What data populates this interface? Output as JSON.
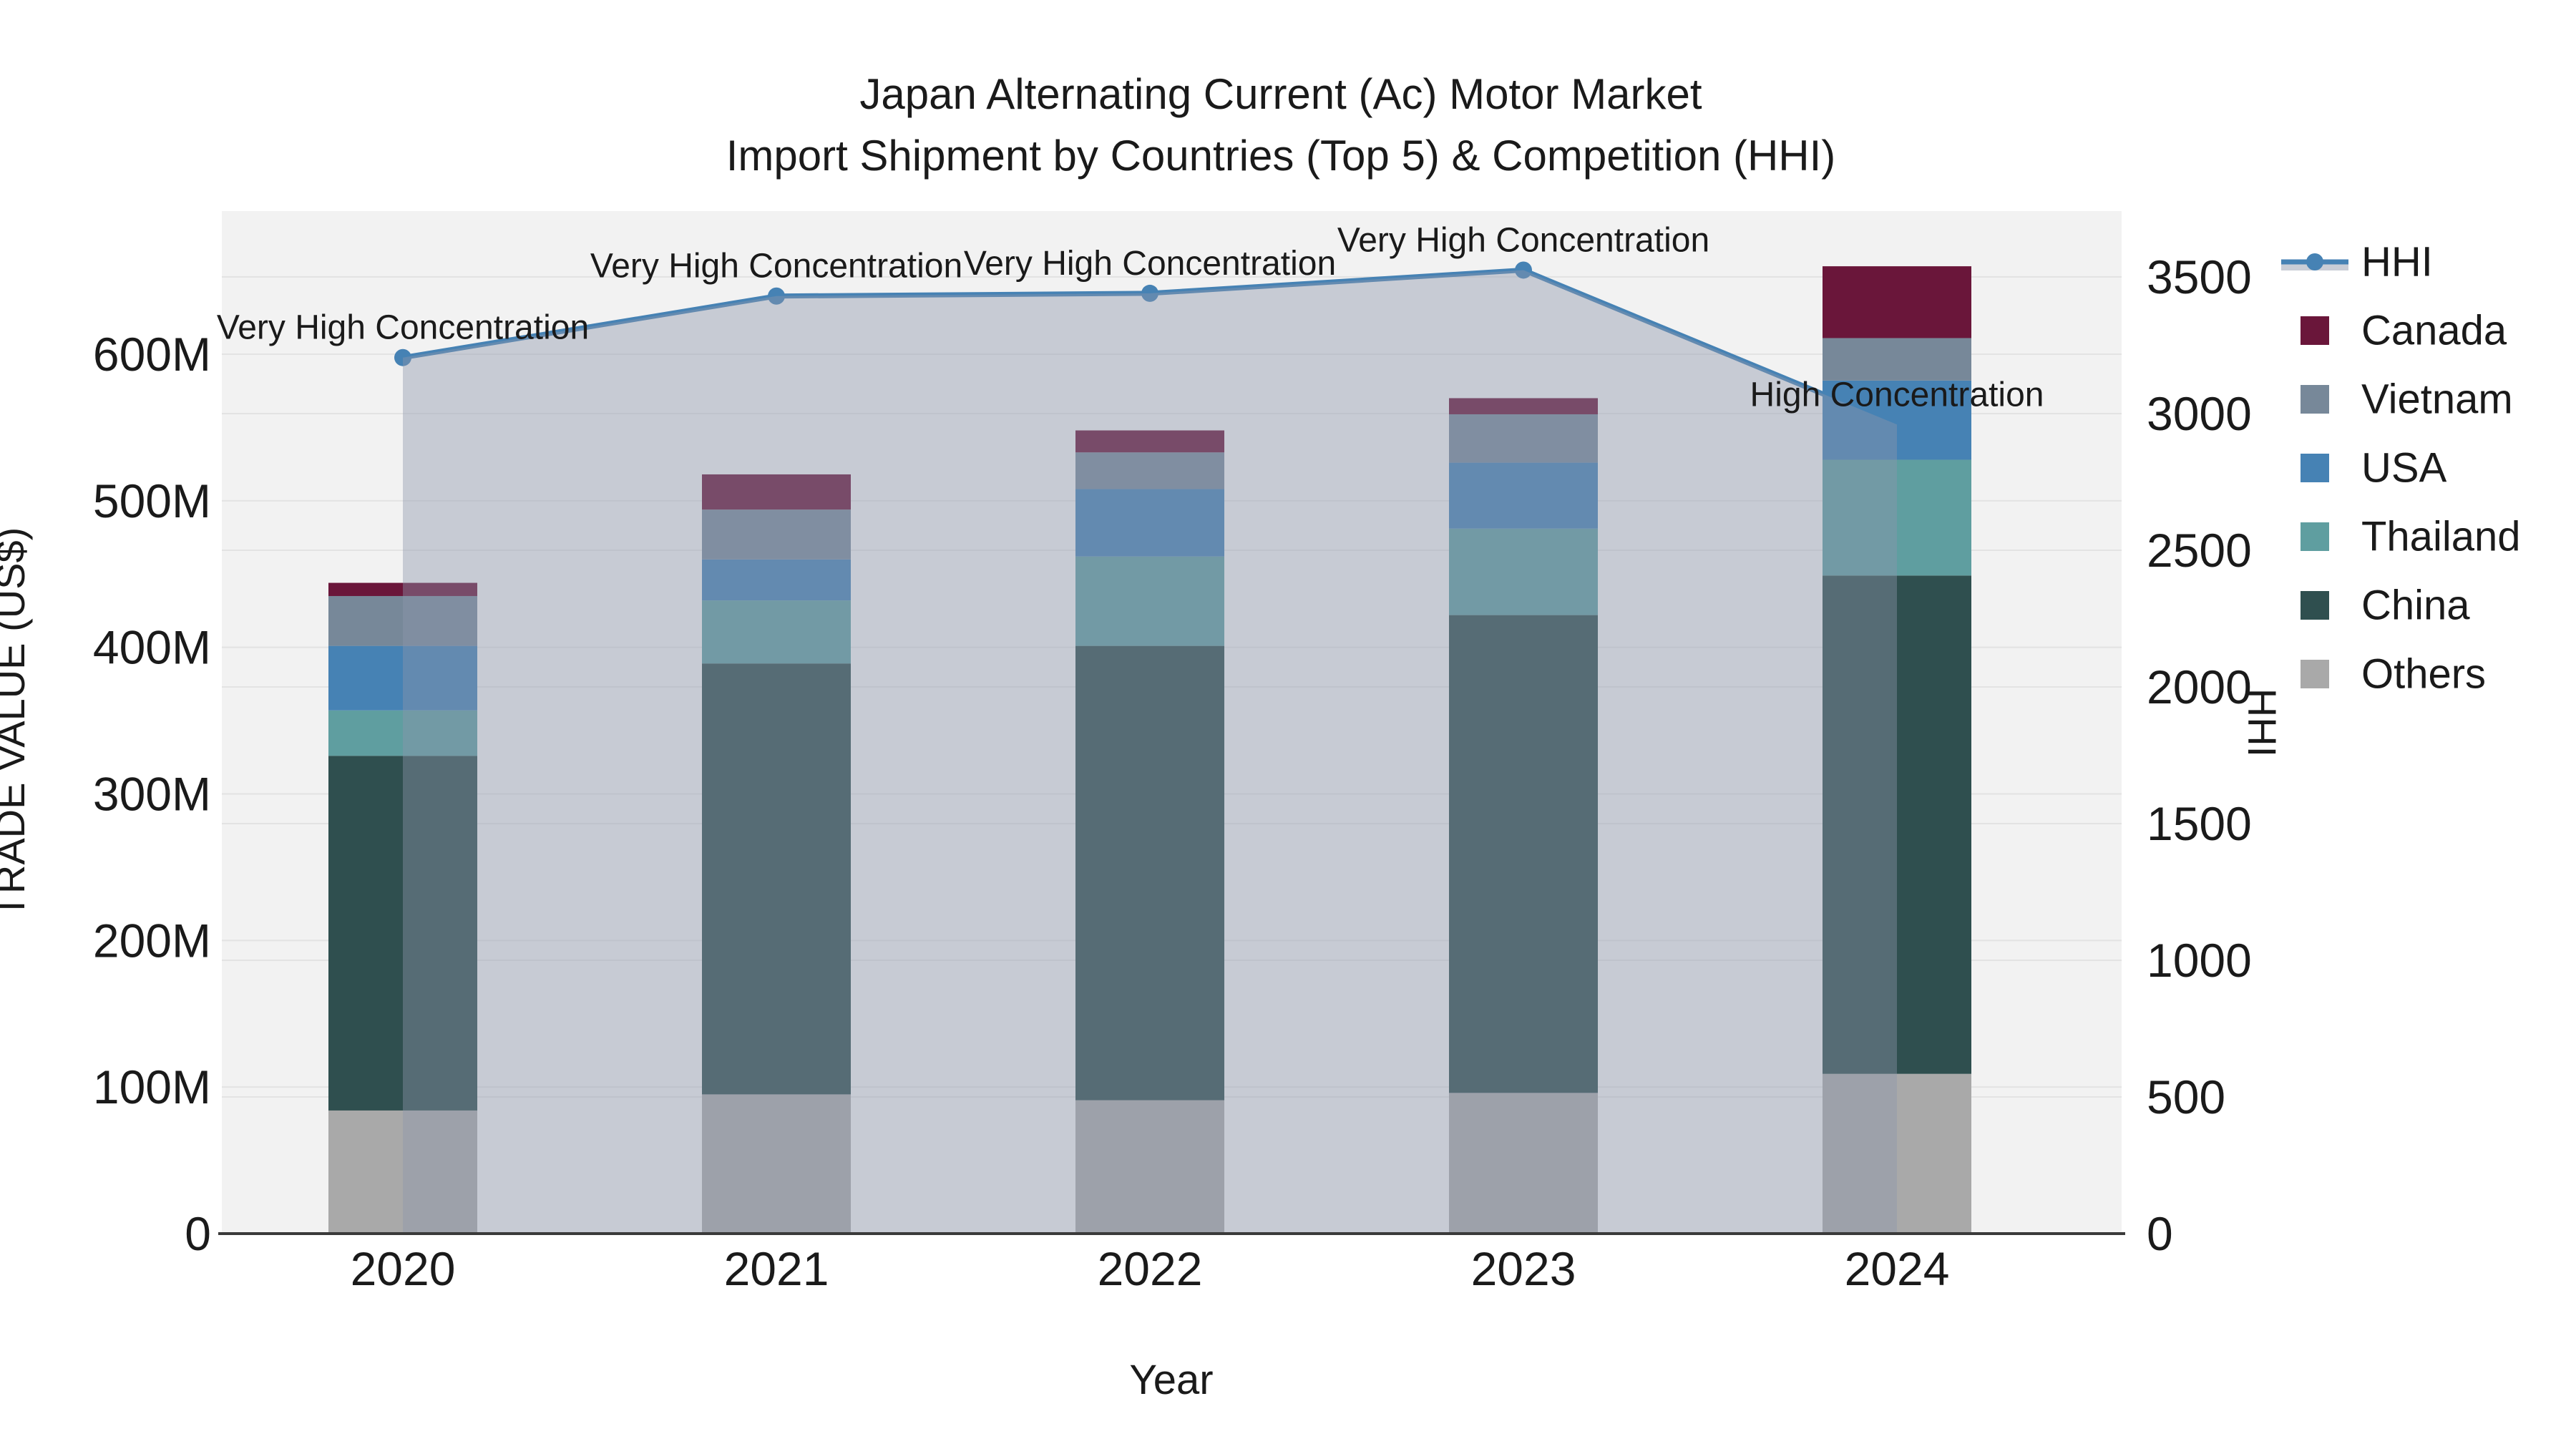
{
  "title": {
    "line1": "Japan Alternating Current (Ac) Motor Market",
    "line2": "Import Shipment by Countries (Top 5) & Competition (HHI)"
  },
  "axis": {
    "x_label": "Year",
    "y_left_label": "TRADE VALUE (US$)",
    "y_right_label": "HHI",
    "y_left_tick_labels": [
      "0",
      "100M",
      "200M",
      "300M",
      "400M",
      "500M",
      "600M"
    ],
    "y_right_tick_labels": [
      "0",
      "500",
      "1000",
      "1500",
      "2000",
      "2500",
      "3000",
      "3500"
    ]
  },
  "legend": {
    "items": [
      {
        "label": "HHI",
        "type": "line",
        "color": "#4682b4"
      },
      {
        "label": "Canada",
        "type": "swatch",
        "color": "#6a163a"
      },
      {
        "label": "Vietnam",
        "type": "swatch",
        "color": "#778899"
      },
      {
        "label": "USA",
        "type": "swatch",
        "color": "#4682b4"
      },
      {
        "label": "Thailand",
        "type": "swatch",
        "color": "#5f9ea0"
      },
      {
        "label": "China",
        "type": "swatch",
        "color": "#2f4f4f"
      },
      {
        "label": "Others",
        "type": "swatch",
        "color": "#a9a9a9"
      }
    ]
  },
  "chart_data": {
    "type": "bar+line",
    "title": "Japan Alternating Current (Ac) Motor Market — Import Shipment by Countries (Top 5) & Competition (HHI)",
    "categories": [
      "2020",
      "2021",
      "2022",
      "2023",
      "2024"
    ],
    "bar_unit": "Million US$",
    "bar_series": [
      {
        "name": "Others",
        "color": "#a9a9a9",
        "values": [
          84,
          95,
          91,
          96,
          109
        ]
      },
      {
        "name": "China",
        "color": "#2f4f4f",
        "values": [
          242,
          294,
          310,
          326,
          340
        ]
      },
      {
        "name": "Thailand",
        "color": "#5f9ea0",
        "values": [
          31,
          43,
          61,
          59,
          79
        ]
      },
      {
        "name": "USA",
        "color": "#4682b4",
        "values": [
          44,
          28,
          46,
          45,
          54
        ]
      },
      {
        "name": "Vietnam",
        "color": "#778899",
        "values": [
          34,
          34,
          25,
          33,
          29
        ]
      },
      {
        "name": "Canada",
        "color": "#6a163a",
        "values": [
          9,
          24,
          15,
          11,
          49
        ]
      }
    ],
    "bar_totals": [
      444,
      518,
      548,
      570,
      660
    ],
    "line_series": {
      "name": "HHI",
      "color": "#4682b4",
      "axis": "right",
      "values": [
        3205,
        3430,
        3440,
        3525,
        2960
      ]
    },
    "annotations": [
      "Very High Concentration",
      "Very High Concentration",
      "Very High Concentration",
      "Very High Concentration",
      "High Concentration"
    ],
    "xlabel": "Year",
    "ylabel_left": "TRADE VALUE (US$)",
    "ylabel_right": "HHI",
    "y_left_ticks_M": [
      0,
      100,
      200,
      300,
      400,
      500,
      600
    ],
    "y_right_ticks": [
      0,
      500,
      1000,
      1500,
      2000,
      2500,
      3000,
      3500
    ],
    "ylim_left_M": [
      0,
      698
    ],
    "ylim_right": [
      0,
      3740
    ],
    "grid": true,
    "legend_position": "right"
  },
  "colors": {
    "plot_bg": "#f2f2f2",
    "grid": "#e3e3e3",
    "axis_line": "#3a3a3a",
    "text": "#1a1a1a",
    "area_fill": "rgba(140,150,172,0.42)",
    "legend_band": "#c9cdd6"
  }
}
